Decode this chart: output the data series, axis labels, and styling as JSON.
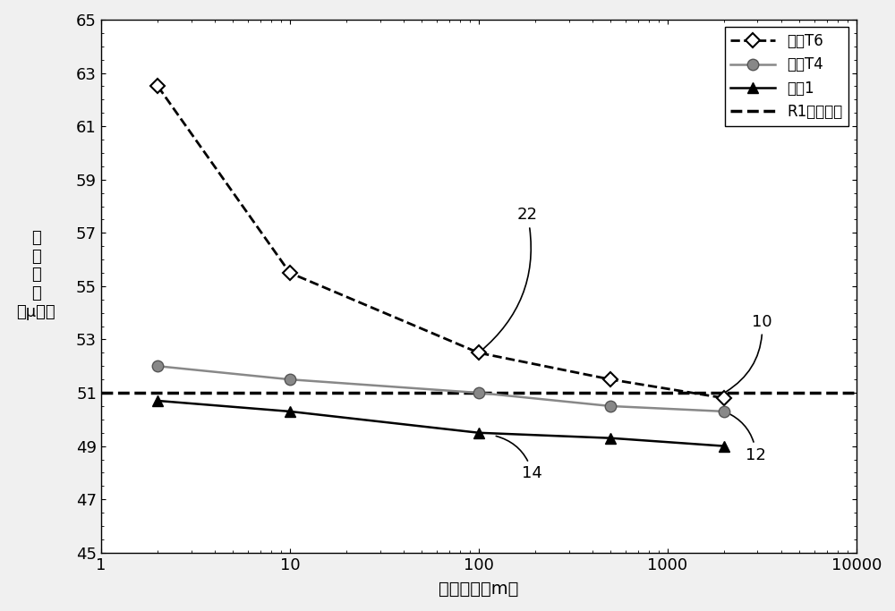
{
  "T6_x": [
    2,
    10,
    100,
    500,
    2000
  ],
  "T6_y": [
    62.5,
    55.5,
    52.5,
    51.5,
    50.8
  ],
  "T4_x": [
    2,
    10,
    100,
    500,
    2000
  ],
  "T4_y": [
    52.0,
    51.5,
    51.0,
    50.5,
    50.3
  ],
  "S1_x": [
    2,
    10,
    100,
    500,
    2000
  ],
  "S1_y": [
    50.7,
    50.3,
    49.5,
    49.3,
    49.0
  ],
  "R1_y": 51.0,
  "xlim_log": [
    1,
    10000
  ],
  "ylim": [
    45,
    65
  ],
  "yticks": [
    45,
    47,
    49,
    51,
    53,
    55,
    57,
    59,
    61,
    63,
    65
  ],
  "xlabel": "光纤长度（m）",
  "ylabel": "纤芯大小（μ㎡）",
  "ylabel_line1": "纤芯大",
  "ylabel_line2": "小",
  "ylabel_line3": "（μ㎡）",
  "legend_T6": "示例T6",
  "legend_T4": "示例T4",
  "legend_S1": "示例1",
  "legend_R1": "R1纤芯直径",
  "annotation_10": "10",
  "annotation_12": "12",
  "annotation_14": "14",
  "annotation_22": "22",
  "bg_color": "#f0f0f0",
  "plot_bg_color": "#ffffff"
}
